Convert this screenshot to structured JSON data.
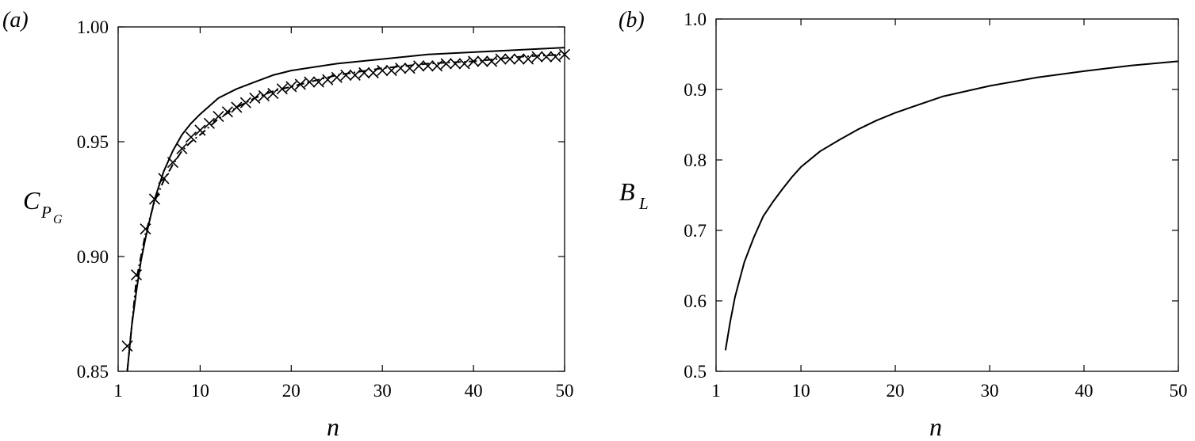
{
  "chart_data": [
    {
      "type": "line",
      "panel_label": "(a)",
      "xlabel": "n",
      "ylabel": "C",
      "ylabel_sub": "P",
      "ylabel_subsub": "G",
      "xlim": [
        1,
        50
      ],
      "ylim": [
        0.85,
        1.0
      ],
      "x_ticks": [
        1,
        10,
        20,
        30,
        40,
        50
      ],
      "x_tick_labels": [
        "1",
        "10",
        "20",
        "30",
        "40",
        "50"
      ],
      "y_ticks": [
        0.85,
        0.9,
        0.95,
        1.0
      ],
      "y_tick_labels": [
        "0.85",
        "0.90",
        "0.95",
        "1.00"
      ],
      "grid": false,
      "series": [
        {
          "style": "solid",
          "x": [
            2,
            2.5,
            3,
            3.5,
            4,
            5,
            6,
            7,
            8,
            9,
            10,
            12,
            14,
            16,
            18,
            20,
            25,
            30,
            35,
            40,
            45,
            50
          ],
          "y": [
            0.85,
            0.87,
            0.885,
            0.898,
            0.908,
            0.925,
            0.937,
            0.946,
            0.953,
            0.958,
            0.962,
            0.969,
            0.973,
            0.976,
            0.979,
            0.981,
            0.984,
            0.986,
            0.988,
            0.989,
            0.99,
            0.991
          ]
        },
        {
          "style": "dash-dot",
          "x": [
            2,
            3,
            4,
            5,
            6,
            7,
            8,
            9,
            10,
            12,
            14,
            16,
            18,
            20,
            25,
            30,
            35,
            40,
            45,
            50
          ],
          "y": [
            0.85,
            0.89,
            0.91,
            0.924,
            0.933,
            0.94,
            0.946,
            0.95,
            0.953,
            0.96,
            0.965,
            0.969,
            0.972,
            0.974,
            0.979,
            0.982,
            0.984,
            0.985,
            0.987,
            0.988
          ]
        },
        {
          "style": "cross-markers",
          "x": [
            2,
            3,
            4,
            5,
            6,
            7,
            8,
            9,
            10,
            11,
            12,
            13,
            14,
            15,
            16,
            17,
            18,
            19,
            20,
            21,
            22,
            23,
            24,
            25,
            26,
            27,
            28,
            29,
            30,
            31,
            32,
            33,
            34,
            35,
            36,
            37,
            38,
            39,
            40,
            41,
            42,
            43,
            44,
            45,
            46,
            47,
            48,
            49,
            50
          ],
          "y": [
            0.861,
            0.892,
            0.912,
            0.925,
            0.934,
            0.941,
            0.947,
            0.952,
            0.955,
            0.958,
            0.961,
            0.963,
            0.965,
            0.967,
            0.969,
            0.97,
            0.971,
            0.973,
            0.974,
            0.975,
            0.976,
            0.976,
            0.977,
            0.978,
            0.979,
            0.979,
            0.98,
            0.98,
            0.981,
            0.981,
            0.982,
            0.982,
            0.983,
            0.983,
            0.983,
            0.984,
            0.984,
            0.984,
            0.985,
            0.985,
            0.985,
            0.986,
            0.986,
            0.986,
            0.986,
            0.987,
            0.987,
            0.987,
            0.988
          ]
        }
      ]
    },
    {
      "type": "line",
      "panel_label": "(b)",
      "xlabel": "n",
      "ylabel": "B",
      "ylabel_sub": "L",
      "xlim": [
        1,
        50
      ],
      "ylim": [
        0.5,
        1.0
      ],
      "x_ticks": [
        1,
        10,
        20,
        30,
        40,
        50
      ],
      "x_tick_labels": [
        "1",
        "10",
        "20",
        "30",
        "40",
        "50"
      ],
      "y_ticks": [
        0.5,
        0.6,
        0.7,
        0.8,
        0.9,
        1.0
      ],
      "y_tick_labels": [
        "0.5",
        "0.6",
        "0.7",
        "0.8",
        "0.9",
        "1.0"
      ],
      "grid": false,
      "series": [
        {
          "style": "solid",
          "x": [
            2,
            2.5,
            3,
            3.5,
            4,
            5,
            6,
            7,
            8,
            9,
            10,
            12,
            14,
            16,
            18,
            20,
            25,
            30,
            35,
            40,
            45,
            50
          ],
          "y": [
            0.53,
            0.57,
            0.605,
            0.63,
            0.655,
            0.69,
            0.72,
            0.74,
            0.758,
            0.775,
            0.79,
            0.812,
            0.828,
            0.843,
            0.856,
            0.867,
            0.89,
            0.905,
            0.917,
            0.926,
            0.934,
            0.94
          ]
        }
      ]
    }
  ]
}
